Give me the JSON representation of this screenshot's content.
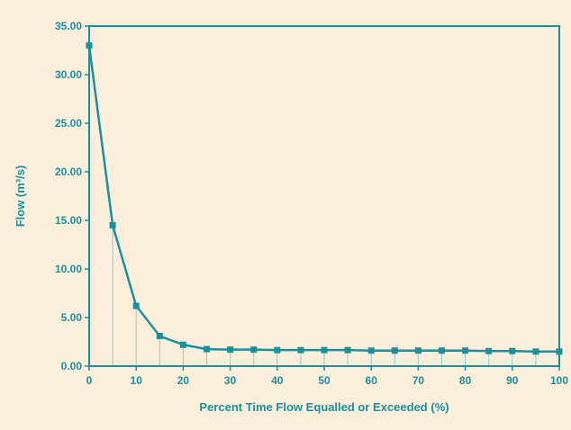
{
  "colors": {
    "background": "#fbeedb",
    "series": "#1a8f9e",
    "axis": "#1a8f9e",
    "drop_lines": "#8ecbd1",
    "text": "#1a8f9e"
  },
  "chart_data": {
    "type": "line",
    "title": "",
    "xlabel": "Percent Time Flow Equalled or Exceeded (%)",
    "ylabel": "Flow (m³/s)",
    "xlim": [
      0,
      100
    ],
    "ylim": [
      0,
      35
    ],
    "x_ticks": [
      "0",
      "10",
      "20",
      "30",
      "40",
      "50",
      "60",
      "70",
      "80",
      "90",
      "100"
    ],
    "y_ticks": [
      "0.00",
      "5.00",
      "10.00",
      "15.00",
      "20.00",
      "25.00",
      "30.00",
      "35.00"
    ],
    "grid": false,
    "drop_lines": true,
    "marker": "square",
    "x": [
      0,
      5,
      10,
      15,
      20,
      25,
      30,
      35,
      40,
      45,
      50,
      55,
      60,
      65,
      70,
      75,
      80,
      85,
      90,
      95,
      100
    ],
    "series": [
      {
        "values": [
          33.0,
          14.5,
          6.2,
          3.1,
          2.2,
          1.75,
          1.7,
          1.7,
          1.65,
          1.65,
          1.65,
          1.65,
          1.6,
          1.6,
          1.6,
          1.6,
          1.6,
          1.55,
          1.55,
          1.5,
          1.5
        ]
      }
    ]
  }
}
